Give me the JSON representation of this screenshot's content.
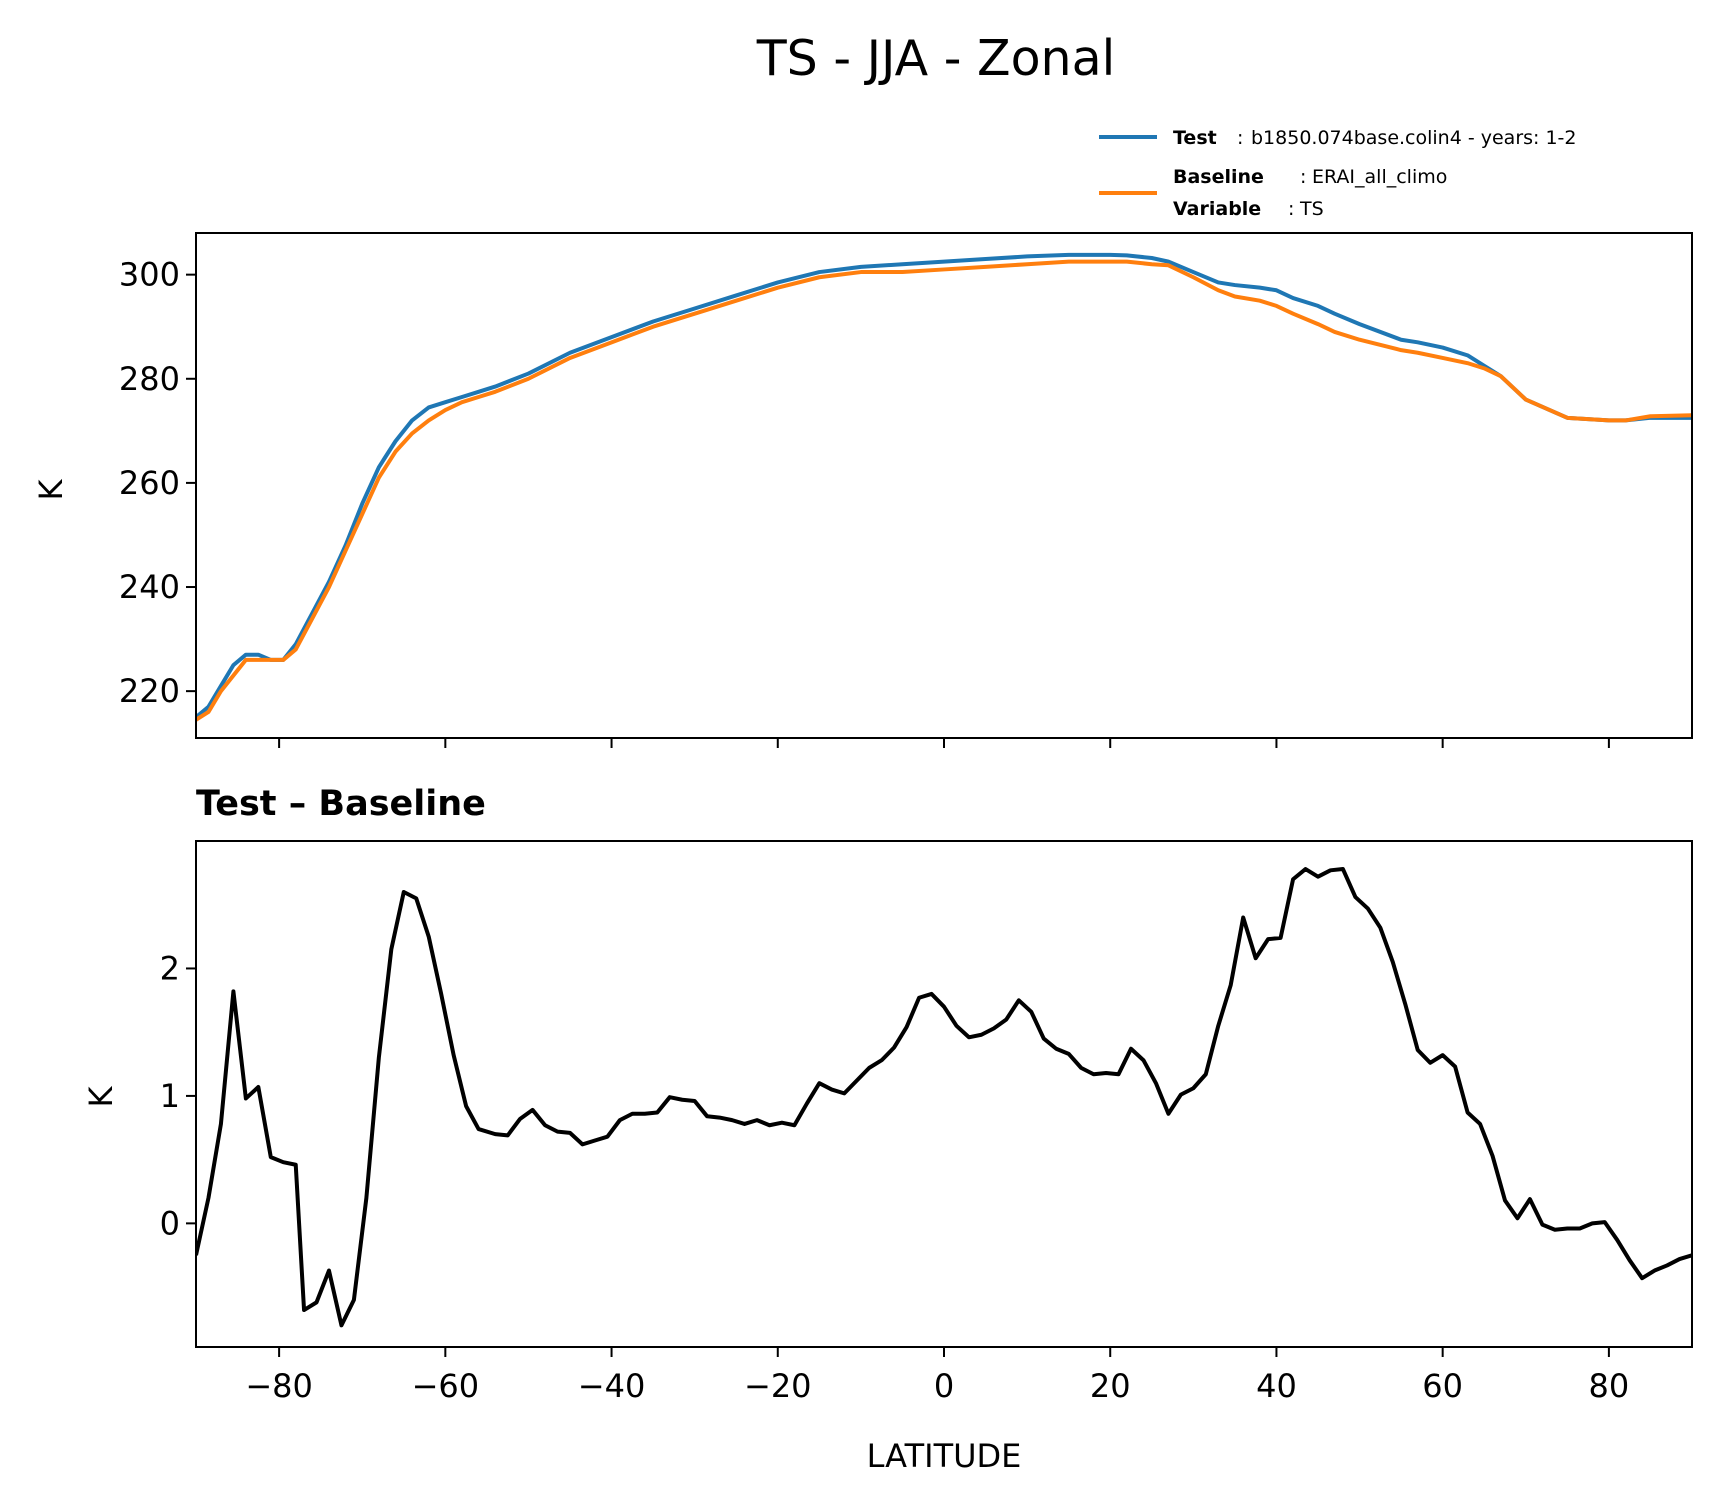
{
  "figure": {
    "title": "TS - JJA - Zonal",
    "legend": {
      "test_label": "Test",
      "test_value": "b1850.074base.colin4 - years: 1-2",
      "baseline_label": "Baseline",
      "baseline_value": "ERAI_all_climo",
      "variable_label": "Variable",
      "variable_value": "TS"
    },
    "colors": {
      "test": "#1f77b4",
      "baseline": "#ff7f0e",
      "diff": "#000000"
    }
  },
  "chart_data": [
    {
      "type": "line",
      "ylabel": "K",
      "xlim": [
        -90,
        90
      ],
      "ylim": [
        211,
        308
      ],
      "yticks": [
        220,
        240,
        260,
        280,
        300
      ],
      "xticks": [
        -80,
        -60,
        -40,
        -20,
        0,
        20,
        40,
        60,
        80
      ],
      "xticklabels_shown": false,
      "legend_position": "above-right",
      "grid": false,
      "series": [
        {
          "name": "Test",
          "color": "#1f77b4",
          "x": [
            -90,
            -88.5,
            -87,
            -85.5,
            -84,
            -82.5,
            -81,
            -79.5,
            -78,
            -76,
            -74,
            -72,
            -70,
            -68,
            -66,
            -64,
            -62,
            -60,
            -58,
            -56,
            -54,
            -50,
            -45,
            -40,
            -35,
            -30,
            -25,
            -20,
            -15,
            -10,
            -5,
            0,
            5,
            10,
            15,
            20,
            22,
            25,
            27,
            30,
            33,
            35,
            38,
            40,
            42,
            45,
            47,
            50,
            55,
            57,
            60,
            63,
            65,
            67,
            70,
            75,
            80,
            82,
            85,
            90
          ],
          "y": [
            215,
            217,
            221,
            225,
            227,
            227,
            226,
            226,
            229,
            235,
            241,
            248,
            256,
            263,
            268,
            272,
            274.5,
            275.5,
            276.5,
            277.5,
            278.5,
            281,
            285,
            288,
            291,
            293.5,
            296,
            298.5,
            300.5,
            301.5,
            302,
            302.5,
            303,
            303.5,
            303.8,
            303.8,
            303.7,
            303.2,
            302.5,
            300.5,
            298.5,
            298,
            297.5,
            297,
            295.5,
            294,
            292.5,
            290.5,
            287.5,
            287,
            286,
            284.5,
            282.5,
            280.5,
            276,
            272.5,
            272,
            272,
            272.5,
            272.5
          ]
        },
        {
          "name": "Baseline",
          "color": "#ff7f0e",
          "x": [
            -90,
            -88.5,
            -87,
            -85.5,
            -84,
            -82.5,
            -81,
            -79.5,
            -78,
            -76,
            -74,
            -72,
            -70,
            -68,
            -66,
            -64,
            -62,
            -60,
            -58,
            -56,
            -54,
            -50,
            -45,
            -40,
            -35,
            -30,
            -25,
            -20,
            -15,
            -10,
            -5,
            0,
            5,
            10,
            15,
            20,
            22,
            25,
            27,
            30,
            33,
            35,
            38,
            40,
            42,
            45,
            47,
            50,
            55,
            57,
            60,
            63,
            65,
            67,
            70,
            75,
            80,
            82,
            85,
            90
          ],
          "y": [
            214.5,
            216,
            220,
            223,
            226,
            226,
            226,
            226,
            228,
            234,
            240,
            247,
            254,
            261,
            266,
            269.5,
            272,
            274,
            275.5,
            276.5,
            277.5,
            280,
            284,
            287,
            290,
            292.5,
            295,
            297.5,
            299.5,
            300.5,
            300.5,
            301,
            301.5,
            302,
            302.5,
            302.5,
            302.5,
            302,
            301.8,
            299.5,
            297,
            295.8,
            295,
            294,
            292.5,
            290.5,
            289,
            287.5,
            285.5,
            285,
            284,
            283,
            282,
            280.5,
            276,
            272.5,
            272,
            272,
            272.8,
            273
          ]
        }
      ]
    },
    {
      "type": "line",
      "title": "Test – Baseline",
      "xlabel": "LATITUDE",
      "ylabel": "K",
      "xlim": [
        -90,
        90
      ],
      "ylim": [
        -0.97,
        3.0
      ],
      "yticks": [
        0,
        1,
        2
      ],
      "xticks": [
        -80,
        -60,
        -40,
        -20,
        0,
        20,
        40,
        60,
        80
      ],
      "xticklabels": [
        "−80",
        "−60",
        "−40",
        "−20",
        "0",
        "20",
        "40",
        "60",
        "80"
      ],
      "grid": false,
      "series": [
        {
          "color": "#000000",
          "x": [
            -90,
            -88.5,
            -87,
            -85.5,
            -84,
            -82.5,
            -81,
            -79.5,
            -78,
            -77,
            -75.5,
            -74,
            -72.5,
            -71,
            -69.5,
            -68,
            -66.5,
            -65,
            -63.5,
            -62,
            -60.5,
            -59,
            -57.5,
            -56,
            -54,
            -52.5,
            -51,
            -49.5,
            -48,
            -46.5,
            -45,
            -43.5,
            -42,
            -40.5,
            -39,
            -37.5,
            -36,
            -34.5,
            -33,
            -31.5,
            -30,
            -28.5,
            -27,
            -25.5,
            -24,
            -22.5,
            -21,
            -19.5,
            -18,
            -16.5,
            -15,
            -13.5,
            -12,
            -10.5,
            -9,
            -7.5,
            -6,
            -4.5,
            -3,
            -1.5,
            0,
            1.5,
            3,
            4.5,
            6,
            7.5,
            9,
            10.5,
            12,
            13.5,
            15,
            16.5,
            18,
            19.5,
            21,
            22.5,
            24,
            25.5,
            27,
            28.5,
            30,
            31.5,
            33,
            34.5,
            36,
            37.5,
            39,
            40.5,
            42,
            43.5,
            45,
            46.5,
            48,
            49.5,
            51,
            52.5,
            54,
            55.5,
            57,
            58.5,
            60,
            61.5,
            63,
            64.5,
            66,
            67.5,
            69,
            70.5,
            72,
            73.5,
            75,
            76.5,
            78,
            79.5,
            81,
            82.5,
            84,
            85.5,
            87,
            88.5,
            90
          ],
          "y": [
            -0.25,
            0.2,
            0.78,
            1.82,
            0.98,
            1.07,
            0.52,
            0.48,
            0.46,
            -0.68,
            -0.62,
            -0.37,
            -0.8,
            -0.6,
            0.2,
            1.3,
            2.15,
            2.6,
            2.55,
            2.25,
            1.8,
            1.32,
            0.92,
            0.74,
            0.7,
            0.69,
            0.82,
            0.89,
            0.77,
            0.72,
            0.71,
            0.62,
            0.65,
            0.68,
            0.81,
            0.86,
            0.86,
            0.87,
            0.99,
            0.97,
            0.96,
            0.84,
            0.83,
            0.81,
            0.78,
            0.81,
            0.77,
            0.79,
            0.77,
            0.94,
            1.1,
            1.05,
            1.02,
            1.12,
            1.22,
            1.28,
            1.38,
            1.54,
            1.77,
            1.8,
            1.7,
            1.55,
            1.46,
            1.48,
            1.53,
            1.6,
            1.75,
            1.66,
            1.45,
            1.37,
            1.33,
            1.22,
            1.17,
            1.18,
            1.17,
            1.37,
            1.28,
            1.1,
            0.86,
            1.01,
            1.06,
            1.17,
            1.55,
            1.87,
            2.4,
            2.08,
            2.23,
            2.24,
            2.7,
            2.78,
            2.72,
            2.77,
            2.78,
            2.56,
            2.47,
            2.32,
            2.05,
            1.72,
            1.36,
            1.26,
            1.32,
            1.23,
            0.87,
            0.78,
            0.53,
            0.18,
            0.04,
            0.19,
            -0.01,
            -0.05,
            -0.04,
            -0.04,
            0.0,
            0.01,
            -0.13,
            -0.29,
            -0.43,
            -0.37,
            -0.33,
            -0.28,
            -0.25
          ]
        }
      ]
    }
  ]
}
